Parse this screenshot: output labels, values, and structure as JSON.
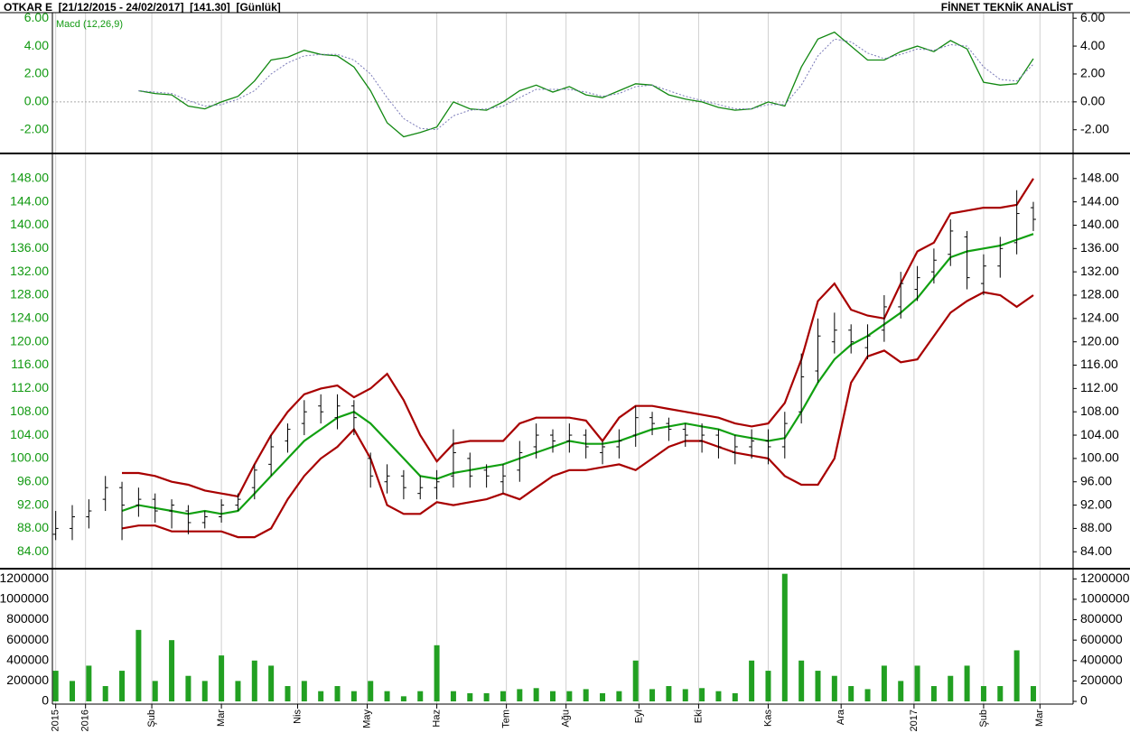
{
  "header": {
    "title": "OTKAR E  [21/12/2015 - 24/02/2017]  [141.30]  [Günlük]",
    "source": "FİNNET TEKNİK ANALİST"
  },
  "chart_data": [
    {
      "type": "line",
      "title": "Macd (12,26,9)",
      "series": [
        {
          "color": "#118811",
          "values": [
            null,
            null,
            null,
            null,
            null,
            0.8,
            0.6,
            0.5,
            -0.3,
            -0.5,
            0,
            0.4,
            1.5,
            3.0,
            3.2,
            3.7,
            3.4,
            3.3,
            2.5,
            0.8,
            -1.5,
            -2.5,
            -2.2,
            -1.8,
            0,
            -0.5,
            -0.6,
            0,
            0.8,
            1.2,
            0.7,
            1.1,
            0.5,
            0.3,
            0.8,
            1.3,
            1.2,
            0.5,
            0.2,
            0,
            -0.4,
            -0.6,
            -0.5,
            0,
            -0.3,
            2.5,
            4.5,
            5.0,
            4.0,
            3.0,
            3.0,
            3.6,
            4.0,
            3.6,
            4.4,
            3.8,
            1.4,
            1.2,
            1.3,
            3.1
          ]
        },
        {
          "color": "#7a7ab8",
          "dashed": true,
          "values": [
            null,
            null,
            null,
            null,
            null,
            0.8,
            0.7,
            0.6,
            0.1,
            -0.3,
            -0.2,
            0.2,
            0.8,
            2.0,
            2.8,
            3.3,
            3.4,
            3.4,
            3.0,
            2.0,
            0.3,
            -1.2,
            -1.9,
            -2.0,
            -1.0,
            -0.6,
            -0.5,
            -0.3,
            0.3,
            0.9,
            0.9,
            0.9,
            0.7,
            0.4,
            0.6,
            1.1,
            1.2,
            0.8,
            0.4,
            0.1,
            -0.2,
            -0.5,
            -0.5,
            -0.2,
            -0.2,
            1.2,
            3.3,
            4.5,
            4.3,
            3.5,
            3.1,
            3.4,
            3.8,
            3.7,
            4.1,
            4.0,
            2.5,
            1.6,
            1.5,
            2.7
          ]
        }
      ],
      "ylim": [
        -3.7,
        6.4
      ],
      "zero_line": true,
      "yticks": [
        {
          "value": -2,
          "label": "-2.00"
        },
        {
          "value": 0,
          "label": "0.00"
        },
        {
          "value": 2,
          "label": "2.00"
        },
        {
          "value": 4,
          "label": "4.00"
        },
        {
          "value": 6,
          "label": "6.00"
        }
      ]
    },
    {
      "type": "ohlc",
      "color": "#000000",
      "open": [
        87,
        88,
        90,
        93,
        95,
        92,
        93,
        91,
        91,
        89,
        90,
        92,
        95,
        99,
        103,
        106,
        109,
        107,
        109,
        100,
        96,
        97,
        94,
        95,
        97,
        100,
        98,
        96,
        98,
        102,
        104,
        103,
        104,
        101,
        102,
        104,
        107,
        106,
        105,
        103,
        104,
        101,
        102,
        103,
        102,
        108,
        115,
        120,
        122,
        119,
        122,
        126,
        129,
        132,
        135,
        138,
        130,
        133,
        137,
        143
      ],
      "high": [
        91,
        92,
        93,
        97,
        96,
        95,
        94,
        93,
        92,
        91,
        93,
        94,
        99,
        104,
        106,
        110,
        111,
        111,
        110,
        101,
        99,
        98,
        97,
        98,
        105,
        101,
        99,
        99,
        103,
        106,
        105,
        106,
        105,
        103,
        105,
        109,
        108,
        107,
        106,
        106,
        105,
        104,
        105,
        105,
        108,
        118,
        124,
        125,
        123,
        123,
        128,
        132,
        133,
        136,
        141,
        139,
        135,
        138,
        146,
        144
      ],
      "low": [
        86,
        86,
        88,
        91,
        86,
        90,
        89,
        88,
        87,
        88,
        89,
        91,
        93,
        97,
        101,
        104,
        106,
        105,
        104,
        95,
        94,
        93,
        93,
        93,
        95,
        95,
        95,
        94,
        96,
        100,
        101,
        101,
        100,
        99,
        100,
        102,
        104,
        103,
        102,
        101,
        100,
        99,
        100,
        99,
        100,
        106,
        113,
        118,
        118,
        117,
        120,
        124,
        127,
        130,
        133,
        129,
        128,
        131,
        135,
        139
      ],
      "close": [
        88,
        90,
        91,
        95,
        92,
        93,
        91,
        92,
        89,
        90,
        92,
        93,
        98,
        102,
        105,
        108,
        108,
        109,
        107,
        97,
        97,
        95,
        95,
        96,
        101,
        97,
        97,
        97,
        101,
        104,
        103,
        104,
        102,
        102,
        103,
        107,
        106,
        105,
        104,
        104,
        102,
        102,
        103,
        102,
        106,
        114,
        121,
        122,
        120,
        121,
        126,
        130,
        131,
        134,
        139,
        131,
        133,
        136,
        142,
        141
      ],
      "series": [
        {
          "color": "#a80000",
          "values": [
            null,
            null,
            null,
            null,
            97.5,
            97.5,
            97,
            96,
            95.5,
            94.5,
            94,
            93.5,
            99,
            104,
            108,
            111,
            112,
            112.5,
            110.5,
            112,
            114.5,
            110,
            104,
            99.5,
            102.5,
            103,
            103,
            103,
            106,
            107,
            107,
            107,
            106.5,
            103,
            107,
            109,
            109,
            108.5,
            108,
            107.5,
            107,
            106,
            105.5,
            106,
            109.5,
            117,
            127,
            130,
            125.5,
            124.5,
            124,
            130,
            135.5,
            137,
            142,
            142.5,
            143,
            143,
            143.5,
            148
          ]
        },
        {
          "color": "#11a011",
          "values": [
            null,
            null,
            null,
            null,
            91,
            92,
            91.5,
            91,
            90.5,
            91,
            90.5,
            91,
            94,
            97,
            100,
            103,
            105,
            107,
            108,
            106,
            103,
            100,
            97,
            96.5,
            97.5,
            98,
            98.5,
            99,
            100,
            101,
            102,
            103,
            102.5,
            102.5,
            103,
            104,
            105,
            105.5,
            106,
            105.5,
            105,
            104,
            103.5,
            103,
            103.5,
            108,
            113,
            117,
            119.5,
            121,
            123,
            125,
            127.5,
            131,
            134.5,
            135.5,
            136,
            136.5,
            137.5,
            138.5
          ]
        },
        {
          "color": "#a80000",
          "values": [
            null,
            null,
            null,
            null,
            88,
            88.5,
            88.5,
            87.5,
            87.5,
            87.5,
            87.5,
            86.5,
            86.5,
            88,
            93,
            97,
            100,
            102,
            105,
            100,
            92,
            90.5,
            90.5,
            92.5,
            92,
            92.5,
            93,
            94,
            93,
            95,
            97,
            98,
            98,
            98.5,
            99,
            98,
            100,
            102,
            103,
            103,
            102,
            101,
            100.5,
            100,
            97,
            95.5,
            95.5,
            100,
            113,
            117.5,
            118.5,
            116.5,
            117,
            121,
            125,
            127,
            128.5,
            128,
            126,
            128
          ]
        }
      ],
      "ylim": [
        81.1,
        152.3
      ],
      "yticks": [
        {
          "value": 84,
          "label": "84.00"
        },
        {
          "value": 88,
          "label": "88.00"
        },
        {
          "value": 92,
          "label": "92.00"
        },
        {
          "value": 96,
          "label": "96.00"
        },
        {
          "value": 100,
          "label": "100.00"
        },
        {
          "value": 104,
          "label": "104.00"
        },
        {
          "value": 108,
          "label": "108.00"
        },
        {
          "value": 112,
          "label": "112.00"
        },
        {
          "value": 116,
          "label": "116.00"
        },
        {
          "value": 120,
          "label": "120.00"
        },
        {
          "value": 124,
          "label": "124.00"
        },
        {
          "value": 128,
          "label": "128.00"
        },
        {
          "value": 132,
          "label": "132.00"
        },
        {
          "value": 136,
          "label": "136.00"
        },
        {
          "value": 140,
          "label": "140.00"
        },
        {
          "value": 144,
          "label": "144.00"
        },
        {
          "value": 148,
          "label": "148.00"
        }
      ]
    },
    {
      "type": "bar",
      "color": "#22a022",
      "x": [
        0,
        5,
        10,
        15,
        20,
        25,
        30,
        35,
        40,
        45,
        50,
        55,
        60,
        65,
        70,
        75,
        80,
        85,
        90,
        95,
        100,
        105,
        110,
        115,
        120,
        125,
        130,
        135,
        140,
        145,
        150,
        155,
        160,
        165,
        170,
        175,
        180,
        185,
        190,
        195,
        200,
        205,
        210,
        215,
        220,
        225,
        230,
        235,
        240,
        245,
        250,
        255,
        260,
        265,
        270,
        275,
        280,
        285,
        290,
        295
      ],
      "values": [
        300000,
        200000,
        350000,
        150000,
        300000,
        700000,
        200000,
        600000,
        250000,
        200000,
        450000,
        200000,
        400000,
        350000,
        150000,
        200000,
        100000,
        150000,
        100000,
        200000,
        100000,
        50000,
        100000,
        550000,
        100000,
        80000,
        80000,
        100000,
        120000,
        130000,
        100000,
        100000,
        120000,
        80000,
        100000,
        400000,
        120000,
        150000,
        120000,
        130000,
        100000,
        80000,
        400000,
        300000,
        1250000,
        400000,
        300000,
        250000,
        150000,
        120000,
        350000,
        200000,
        350000,
        150000,
        250000,
        350000,
        150000,
        150000,
        500000,
        150000
      ],
      "ylim": [
        0,
        1300000
      ],
      "yticks": [
        0,
        200000,
        400000,
        600000,
        800000,
        1000000,
        1200000
      ],
      "xlim": [
        -1,
        307
      ],
      "xticks": [
        {
          "value": 0,
          "label": "2015"
        },
        {
          "value": 9,
          "label": "2016"
        },
        {
          "value": 29,
          "label": "Şub"
        },
        {
          "value": 50,
          "label": "Mar"
        },
        {
          "value": 73,
          "label": "Nis"
        },
        {
          "value": 94,
          "label": "May"
        },
        {
          "value": 115,
          "label": "Haz"
        },
        {
          "value": 136,
          "label": "Tem"
        },
        {
          "value": 154,
          "label": "Ağu"
        },
        {
          "value": 176,
          "label": "Eyl"
        },
        {
          "value": 194,
          "label": "Eki"
        },
        {
          "value": 215,
          "label": "Kas"
        },
        {
          "value": 237,
          "label": "Ara"
        },
        {
          "value": 259,
          "label": "2017"
        },
        {
          "value": 280,
          "label": "Şub"
        },
        {
          "value": 297,
          "label": "Mar"
        }
      ]
    }
  ]
}
